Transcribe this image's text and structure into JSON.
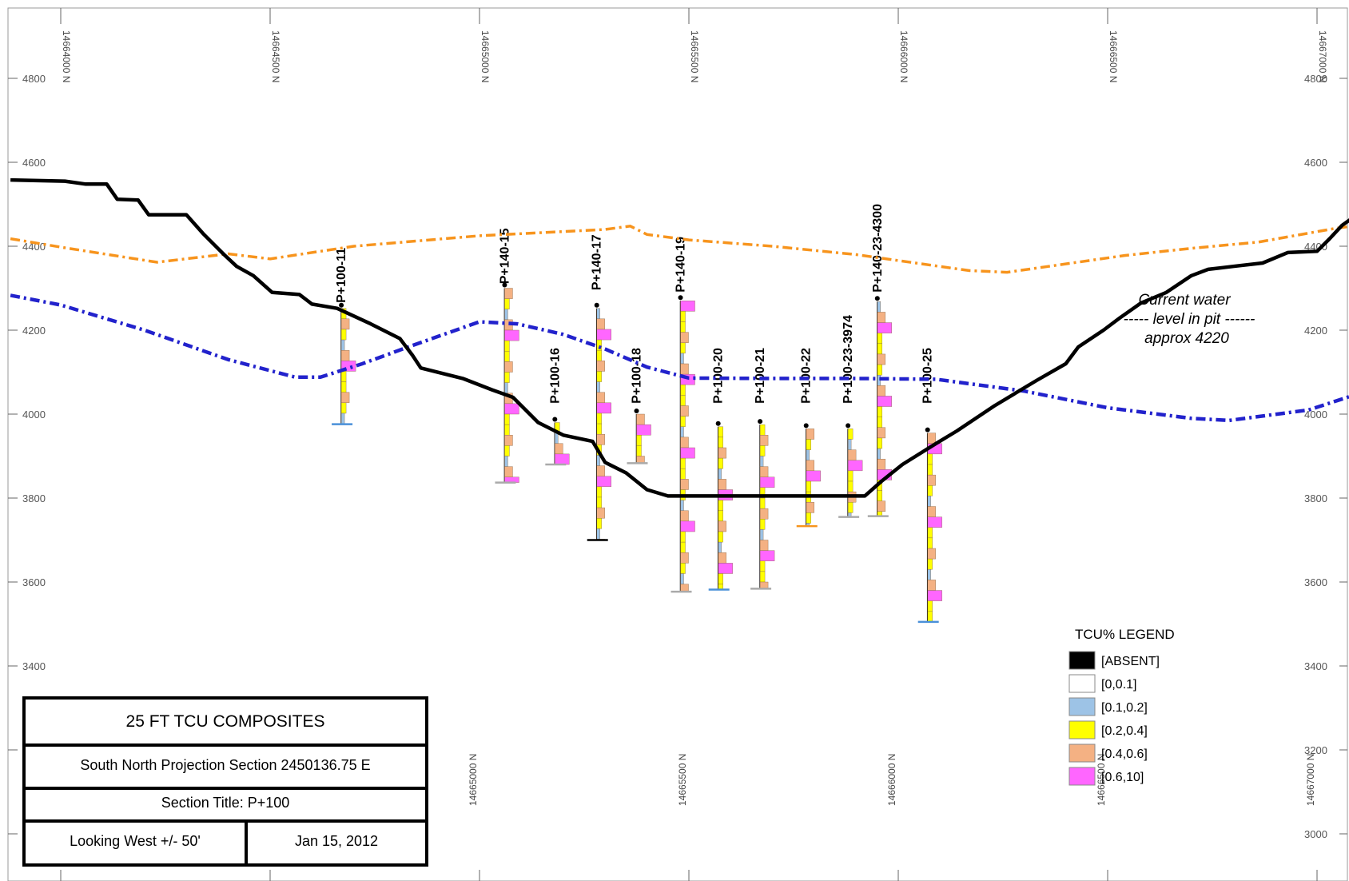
{
  "section": {
    "elevation_ticks": [
      4800,
      4600,
      4400,
      4200,
      4000,
      3800,
      3600,
      3400,
      3200,
      3000
    ],
    "northing_labels_top": [
      "14664000 N",
      "14664500 N",
      "14665000 N",
      "14665500 N",
      "14666000 N",
      "14666500 N",
      "14667000 N"
    ],
    "northing_labels_bottom": [
      "14665000 N",
      "14665500 N",
      "14666000 N",
      "14666500 N",
      "14667000 N"
    ],
    "northing_values_top": [
      14664000,
      14664500,
      14665000,
      14665500,
      14666000,
      14666500,
      14667000
    ],
    "northing_values_bottom": [
      14665000,
      14665500,
      14666000,
      14666500,
      14667000
    ],
    "lines": {
      "topography": {
        "color": "#000000",
        "points": [
          [
            14663880,
            4558
          ],
          [
            14664010,
            4555
          ],
          [
            14664060,
            4548
          ],
          [
            14664110,
            4548
          ],
          [
            14664135,
            4512
          ],
          [
            14664185,
            4510
          ],
          [
            14664210,
            4475
          ],
          [
            14664300,
            4475
          ],
          [
            14664340,
            4430
          ],
          [
            14664390,
            4380
          ],
          [
            14664420,
            4352
          ],
          [
            14664460,
            4330
          ],
          [
            14664505,
            4290
          ],
          [
            14664570,
            4285
          ],
          [
            14664600,
            4262
          ],
          [
            14664660,
            4252
          ],
          [
            14664740,
            4215
          ],
          [
            14664810,
            4180
          ],
          [
            14664840,
            4140
          ],
          [
            14664860,
            4110
          ],
          [
            14664960,
            4085
          ],
          [
            14665030,
            4058
          ],
          [
            14665080,
            4040
          ],
          [
            14665140,
            3980
          ],
          [
            14665200,
            3950
          ],
          [
            14665270,
            3935
          ],
          [
            14665300,
            3885
          ],
          [
            14665350,
            3860
          ],
          [
            14665400,
            3820
          ],
          [
            14665450,
            3805
          ],
          [
            14665920,
            3805
          ],
          [
            14665960,
            3840
          ],
          [
            14666010,
            3880
          ],
          [
            14666090,
            3930
          ],
          [
            14666140,
            3960
          ],
          [
            14666230,
            4020
          ],
          [
            14666330,
            4080
          ],
          [
            14666400,
            4120
          ],
          [
            14666430,
            4160
          ],
          [
            14666490,
            4200
          ],
          [
            14666530,
            4230
          ],
          [
            14666580,
            4265
          ],
          [
            14666640,
            4290
          ],
          [
            14666700,
            4330
          ],
          [
            14666740,
            4345
          ],
          [
            14666800,
            4352
          ],
          [
            14666870,
            4360
          ],
          [
            14666930,
            4385
          ],
          [
            14667000,
            4388
          ],
          [
            14667030,
            4418
          ],
          [
            14667060,
            4450
          ],
          [
            14667100,
            4478
          ],
          [
            14667120,
            4492
          ],
          [
            14667140,
            4487
          ]
        ]
      },
      "orange_dashed": {
        "color": "#f7941d",
        "points": [
          [
            14663880,
            4418
          ],
          [
            14664000,
            4398
          ],
          [
            14664230,
            4362
          ],
          [
            14664400,
            4382
          ],
          [
            14664500,
            4370
          ],
          [
            14664700,
            4400
          ],
          [
            14665000,
            4425
          ],
          [
            14665200,
            4435
          ],
          [
            14665300,
            4440
          ],
          [
            14665360,
            4448
          ],
          [
            14665400,
            4428
          ],
          [
            14665500,
            4415
          ],
          [
            14665700,
            4400
          ],
          [
            14665900,
            4380
          ],
          [
            14666170,
            4342
          ],
          [
            14666260,
            4338
          ],
          [
            14666540,
            4378
          ],
          [
            14666700,
            4395
          ],
          [
            14666860,
            4410
          ],
          [
            14667040,
            4442
          ],
          [
            14667140,
            4456
          ]
        ]
      },
      "blue_dashed": {
        "color": "#2222cc",
        "points": [
          [
            14663880,
            4283
          ],
          [
            14664000,
            4260
          ],
          [
            14664200,
            4200
          ],
          [
            14664400,
            4130
          ],
          [
            14664560,
            4088
          ],
          [
            14664620,
            4088
          ],
          [
            14664720,
            4120
          ],
          [
            14664830,
            4160
          ],
          [
            14665000,
            4220
          ],
          [
            14665090,
            4215
          ],
          [
            14665200,
            4190
          ],
          [
            14665300,
            4155
          ],
          [
            14665400,
            4112
          ],
          [
            14665500,
            4086
          ],
          [
            14665700,
            4085
          ],
          [
            14665900,
            4085
          ],
          [
            14666090,
            4083
          ],
          [
            14666300,
            4055
          ],
          [
            14666500,
            4015
          ],
          [
            14666700,
            3990
          ],
          [
            14666790,
            3985
          ],
          [
            14666980,
            4010
          ],
          [
            14667140,
            4062
          ]
        ]
      }
    },
    "holes": [
      {
        "label": "P+100-11",
        "x": 14664670,
        "top": 4252,
        "bottom": 3976,
        "label_bottom": 4265,
        "cap": "#4a90d9"
      },
      {
        "label": "P+140-15",
        "x": 14665060,
        "top": 4300,
        "bottom": 3837,
        "label_bottom": 4310,
        "cap": "#aaaaaa"
      },
      {
        "label": "P+100-16",
        "x": 14665180,
        "top": 3980,
        "bottom": 3880,
        "label_bottom": 4025,
        "cap": "#aaaaaa"
      },
      {
        "label": "P+140-17",
        "x": 14665280,
        "top": 4252,
        "bottom": 3700,
        "label_bottom": 4295,
        "cap": "#000000"
      },
      {
        "label": "P+100-18",
        "x": 14665375,
        "top": 4000,
        "bottom": 3883,
        "label_bottom": 4025,
        "cap": "#aaaaaa"
      },
      {
        "label": "P+140-19",
        "x": 14665480,
        "top": 4270,
        "bottom": 3577,
        "label_bottom": 4290,
        "cap": "#aaaaaa"
      },
      {
        "label": "P+100-20",
        "x": 14665570,
        "top": 3970,
        "bottom": 3582,
        "label_bottom": 4025,
        "cap": "#4a90d9"
      },
      {
        "label": "P+100-21",
        "x": 14665670,
        "top": 3975,
        "bottom": 3584,
        "label_bottom": 4025,
        "cap": "#aaaaaa"
      },
      {
        "label": "P+100-22",
        "x": 14665780,
        "top": 3965,
        "bottom": 3733,
        "label_bottom": 4025,
        "cap": "#f7941d"
      },
      {
        "label": "P+100-23-3974",
        "x": 14665880,
        "top": 3965,
        "bottom": 3755,
        "label_bottom": 4025,
        "cap": "#aaaaaa"
      },
      {
        "label": "P+140-23-4300",
        "x": 14665950,
        "top": 4268,
        "bottom": 3757,
        "label_bottom": 4290,
        "cap": "#aaaaaa"
      },
      {
        "label": "P+100-25",
        "x": 14666070,
        "top": 3955,
        "bottom": 3505,
        "label_bottom": 4025,
        "cap": "#4a90d9"
      }
    ],
    "note": {
      "lines": [
        "Current water",
        "----- level in pit ------",
        "approx 4220"
      ]
    }
  },
  "legend": {
    "title": "TCU%  LEGEND",
    "items": [
      {
        "label": "[ABSENT]",
        "color": "#000000"
      },
      {
        "label": "[0,0.1]",
        "color": "#ffffff"
      },
      {
        "label": "[0.1,0.2]",
        "color": "#9dc3e6"
      },
      {
        "label": "[0.2,0.4]",
        "color": "#ffff00"
      },
      {
        "label": "[0.4,0.6]",
        "color": "#f4b183"
      },
      {
        "label": "[0.6,10]",
        "color": "#ff66ff"
      }
    ]
  },
  "title_block": {
    "title": "25 FT TCU COMPOSITES",
    "projection": "South North Projection Section 2450136.75 E",
    "section_title": "Section Title: P+100",
    "looking": "Looking West +/- 50'",
    "date": "Jan 15, 2012"
  }
}
